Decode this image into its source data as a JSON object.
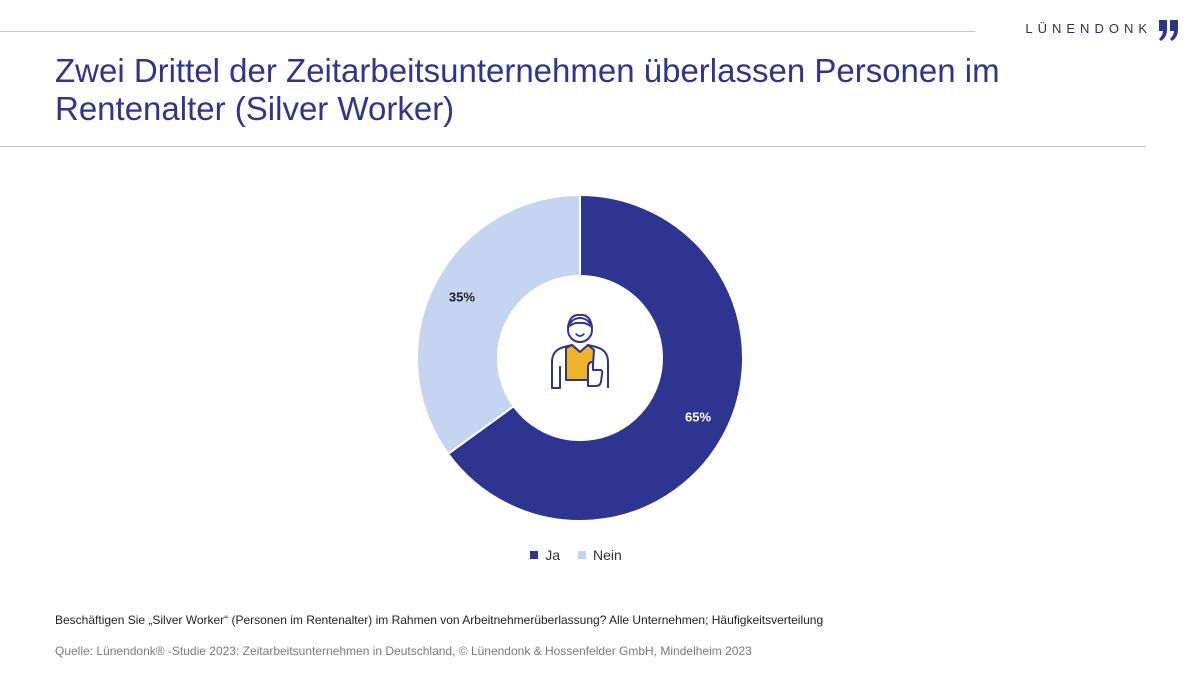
{
  "brand": {
    "name": "LÜNENDONK",
    "mark_color": "#2e3590"
  },
  "title": "Zwei Drittel der Zeitarbeitsunternehmen überlassen Personen im Rentenalter (Silver Worker)",
  "chart_data": {
    "type": "pie",
    "donut": true,
    "center_icon": "worker-thumbs-up-icon",
    "slices": [
      {
        "name": "Ja",
        "value": 65,
        "label": "65%",
        "color": "#2e3590",
        "label_color": "#ffffff"
      },
      {
        "name": "Nein",
        "value": 35,
        "label": "35%",
        "color": "#c5d4f0",
        "label_color": "#222222"
      }
    ],
    "legend_position": "bottom"
  },
  "footer": {
    "question": "Beschäftigen Sie „Silver Worker“ (Personen im Rentenalter) im Rahmen von Arbeitnehmerüberlassung? Alle Unternehmen; Häufigkeitsverteilung",
    "source": "Quelle: Lünendonk® -Studie 2023: Zeitarbeitsunternehmen in Deutschland, © Lünendonk & Hossenfelder GmbH, Mindelheim 2023"
  },
  "colors": {
    "title": "#2e3590",
    "rule": "#c8c8c8",
    "icon_accent": "#f0b429"
  }
}
